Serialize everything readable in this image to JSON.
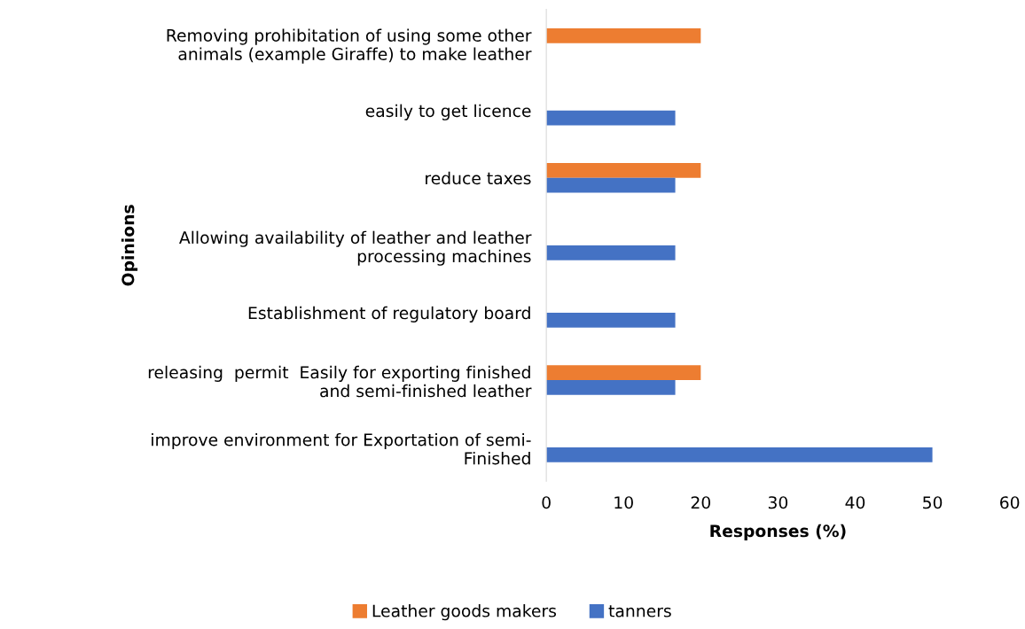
{
  "chart_data": {
    "type": "bar",
    "orientation": "horizontal",
    "xlabel": "Responses (%)",
    "ylabel": "Opinions",
    "categories": [
      "Removing prohibitation of using some other\nanimals (example Giraffe) to make leather",
      "easily to get licence",
      "reduce taxes",
      "Allowing availability of leather and leather\nprocessing machines",
      "Establishment of regulatory board",
      "releasing  permit  Easily for exporting finished\nand semi-finished leather",
      "improve environment for Exportation of semi-\nFinished"
    ],
    "series": [
      {
        "name": "Leather goods makers",
        "color": "#ed7d31",
        "values": [
          20,
          null,
          20,
          null,
          null,
          20,
          null
        ]
      },
      {
        "name": "tanners",
        "color": "#4472c4",
        "values": [
          null,
          16.7,
          16.7,
          16.7,
          16.7,
          16.7,
          50
        ]
      }
    ],
    "xlim": [
      0,
      60
    ],
    "xticks": [
      0,
      10,
      20,
      30,
      40,
      50,
      60
    ],
    "grid": false,
    "legend": "bottom"
  }
}
